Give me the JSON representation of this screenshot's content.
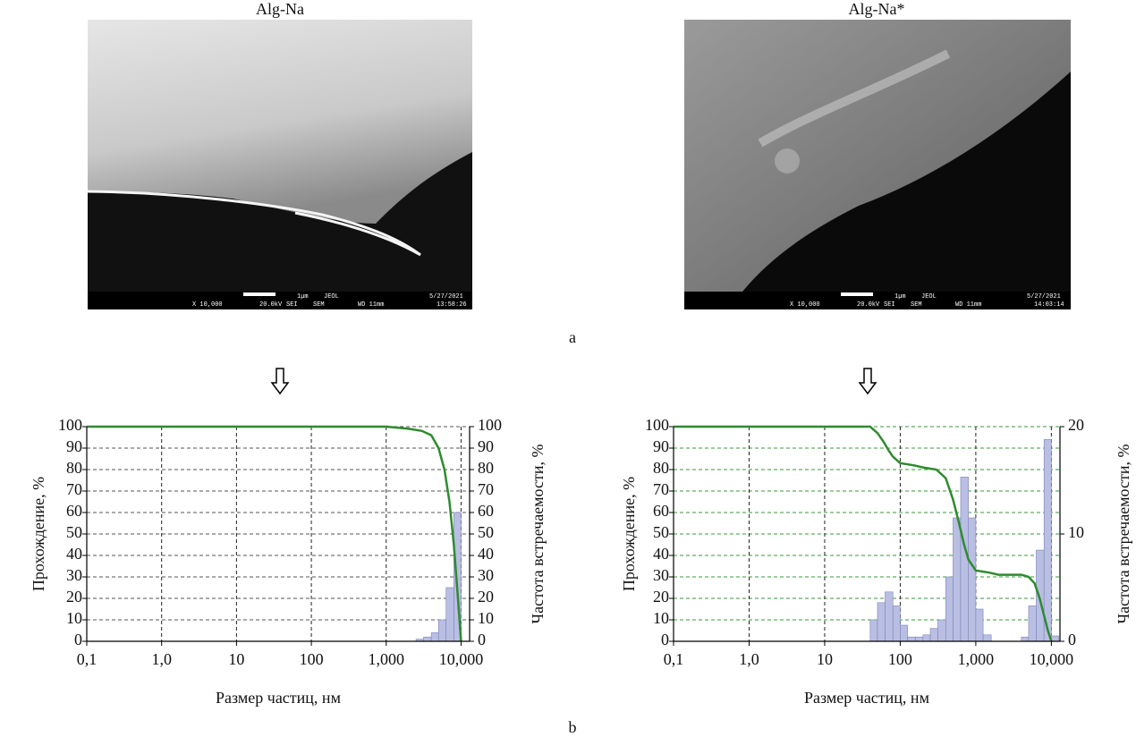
{
  "images": [
    {
      "title": "Alg-Na",
      "scale": "1µm",
      "maker": "JEOL",
      "date": "5/27/2021",
      "mag": "X 10,000",
      "voltage": "20.0kV",
      "detector": "SEI",
      "mode": "SEM",
      "wd": "WD 11mm",
      "time": "13:58:26"
    },
    {
      "title": "Alg-Na*",
      "scale": "1µm",
      "maker": "JEOL",
      "date": "5/27/2021",
      "mag": "X 10,000",
      "voltage": "20.0kV",
      "detector": "SEI",
      "mode": "SEM",
      "wd": "WD 11mm",
      "time": "14:03:14"
    }
  ],
  "panel_labels": [
    "a",
    "b"
  ],
  "chart_data": [
    {
      "type": "combo",
      "xlabel": "Размер частиц, нм",
      "ylabel": "Прохождение, %",
      "y2label": "Частота встречаемости, %",
      "xscale": "log",
      "xlim": [
        0.1,
        13000
      ],
      "xticks": [
        {
          "value": 0.1,
          "label": "0,1"
        },
        {
          "value": 1,
          "label": "1,0"
        },
        10,
        100,
        {
          "value": 1000,
          "label": "1,000"
        },
        {
          "value": 10000,
          "label": "10,000"
        }
      ],
      "ylim": [
        0,
        100
      ],
      "yticks": [
        0,
        10,
        20,
        30,
        40,
        50,
        60,
        70,
        80,
        90,
        100
      ],
      "y2lim": [
        0,
        100
      ],
      "y2ticks": [
        0,
        10,
        20,
        30,
        40,
        50,
        60,
        70,
        80,
        90,
        100
      ],
      "grid": true,
      "grid_color": "#555555",
      "line": {
        "color": "#2e8b2e",
        "x": [
          0.1,
          1000,
          2000,
          3000,
          4000,
          5000,
          6000,
          7000,
          8000,
          9000,
          10000
        ],
        "values": [
          100,
          100,
          99,
          98,
          96,
          90,
          80,
          65,
          45,
          22,
          0
        ]
      },
      "bars": {
        "axis": "y2",
        "color": "#b9bee3",
        "bins": [
          2500,
          3150,
          4000,
          5000,
          6300,
          8000,
          10000
        ],
        "values": [
          1,
          2,
          4,
          10,
          25,
          60
        ]
      }
    },
    {
      "type": "combo",
      "xlabel": "Размер частиц, нм",
      "ylabel": "Прохождение, %",
      "y2label": "Частота встречаемости, %",
      "xscale": "log",
      "xlim": [
        0.1,
        13000
      ],
      "xticks": [
        {
          "value": 0.1,
          "label": "0,1"
        },
        {
          "value": 1,
          "label": "1,0"
        },
        10,
        100,
        {
          "value": 1000,
          "label": "1,000"
        },
        {
          "value": 10000,
          "label": "10,000"
        }
      ],
      "ylim": [
        0,
        100
      ],
      "yticks": [
        0,
        10,
        20,
        30,
        40,
        50,
        60,
        70,
        80,
        90,
        100
      ],
      "y2lim": [
        0,
        20
      ],
      "y2ticks": [
        0,
        10,
        20
      ],
      "grid": true,
      "grid_color": "#3a9a3a",
      "line": {
        "color": "#2e8b2e",
        "x": [
          0.1,
          40,
          50,
          60,
          70,
          80,
          100,
          150,
          200,
          300,
          400,
          500,
          600,
          700,
          800,
          1000,
          1500,
          2000,
          3000,
          4000,
          5000,
          6000,
          7000,
          8000,
          9000,
          10000
        ],
        "values": [
          100,
          100,
          97,
          93,
          89,
          86,
          83,
          82,
          81,
          80,
          76,
          66,
          55,
          45,
          38,
          33,
          32,
          31,
          31,
          31,
          30,
          27,
          20,
          12,
          5,
          0
        ]
      },
      "bars": {
        "axis": "y2",
        "color": "#b9bee3",
        "bins": [
          40,
          50,
          63,
          80,
          100,
          125,
          160,
          200,
          250,
          315,
          400,
          500,
          630,
          800,
          1000,
          1250,
          1600,
          2000,
          2500,
          3150,
          4000,
          5000,
          6300,
          8000,
          10000,
          12500
        ],
        "values": [
          2,
          3.6,
          4.6,
          3.3,
          1.5,
          0.4,
          0.4,
          0.6,
          1.2,
          2,
          6,
          11.5,
          15.3,
          11.5,
          3,
          0.6,
          0,
          0,
          0,
          0,
          0.4,
          3.3,
          8.5,
          18.8,
          0.5
        ]
      }
    }
  ]
}
